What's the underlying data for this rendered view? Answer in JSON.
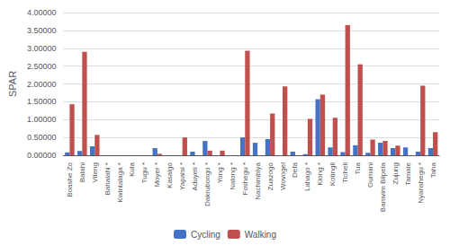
{
  "chart_data": {
    "type": "bar",
    "ylabel": "SPAR",
    "categories": [
      "Boashe Zo",
      "Balahi",
      "Viteng",
      "Bahalahi *",
      "Kwintalaga *",
      "Kula",
      "Tugu *",
      "Moyer *",
      "Kasalgo",
      "Yapalsi *",
      "Aduyeli *",
      "Dakrubongo *",
      "Yong *",
      "Nalong *",
      "Foshegu *",
      "Nachimbiya",
      "Zuazogo",
      "Wovogel",
      "Defa",
      "Lahago *",
      "Kiong *",
      "Kotingli",
      "Ticheli",
      "Tua",
      "Gumani",
      "Bamvim Bilpela",
      "Zujung",
      "Tamale",
      "Nyanshegu *",
      "Taha"
    ],
    "series": [
      {
        "name": "Cycling",
        "color": "#4472C4",
        "values": [
          0.08,
          0.12,
          0.25,
          0.0,
          0.0,
          0.0,
          0.0,
          0.2,
          0.0,
          0.0,
          0.1,
          0.4,
          0.0,
          0.0,
          0.5,
          0.35,
          0.45,
          0.0,
          0.1,
          0.03,
          1.57,
          0.22,
          0.09,
          0.28,
          0.07,
          0.35,
          0.2,
          0.22,
          0.1,
          0.2
        ]
      },
      {
        "name": "Walking",
        "color": "#C0504D",
        "values": [
          1.43,
          2.9,
          0.57,
          0.0,
          0.0,
          0.0,
          0.0,
          0.04,
          0.0,
          0.5,
          0.0,
          0.13,
          0.13,
          0.0,
          2.93,
          0.0,
          1.17,
          1.93,
          0.0,
          1.02,
          1.7,
          1.05,
          3.65,
          2.55,
          0.44,
          0.4,
          0.27,
          0.0,
          1.95,
          0.65
        ]
      }
    ],
    "ylim": [
      0.0,
      4.0
    ],
    "yticks": [
      {
        "value": 0.0,
        "label": "0.00000"
      },
      {
        "value": 0.5,
        "label": "0.50000"
      },
      {
        "value": 1.0,
        "label": "1.00000"
      },
      {
        "value": 1.5,
        "label": "1.50000"
      },
      {
        "value": 2.0,
        "label": "2.00000"
      },
      {
        "value": 2.5,
        "label": "2.50000"
      },
      {
        "value": 3.0,
        "label": "3.00000"
      },
      {
        "value": 3.5,
        "label": "3.50000"
      },
      {
        "value": 4.0,
        "label": "4.00000"
      }
    ],
    "grid": true,
    "legend": "bottom"
  }
}
